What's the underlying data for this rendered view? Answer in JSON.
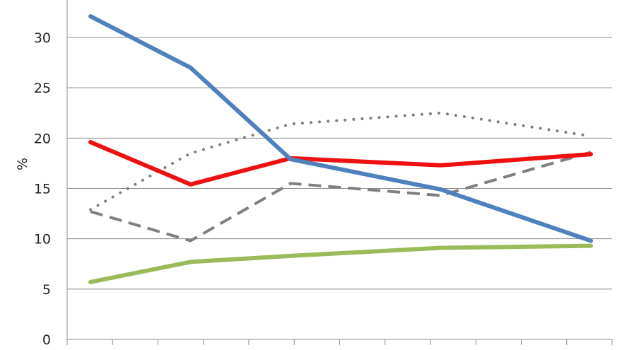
{
  "chart_data": {
    "type": "line",
    "ylabel": "%",
    "ylim": [
      0,
      35
    ],
    "yticks": [
      0,
      5,
      10,
      15,
      20,
      25,
      30
    ],
    "grid": "horizontal",
    "legend": "none",
    "x": [
      1,
      2,
      3,
      4,
      5,
      6
    ],
    "series": [
      {
        "values": [
          32.1,
          27.0,
          17.9,
          14.9,
          9.8
        ],
        "x": [
          1,
          2,
          3,
          4.5,
          6
        ],
        "color": "#4f81bd",
        "style": "solid"
      },
      {
        "values": [
          19.6,
          15.4,
          18.0,
          17.3,
          18.4
        ],
        "x": [
          1,
          2,
          3,
          4.5,
          6
        ],
        "color": "#ee1111",
        "style": "solid"
      },
      {
        "values": [
          12.7,
          9.8,
          15.5,
          14.3,
          18.6
        ],
        "x": [
          1,
          2,
          3,
          4.5,
          6
        ],
        "color": "#808080",
        "style": "dashed"
      },
      {
        "values": [
          12.9,
          18.5,
          21.4,
          22.5,
          20.2
        ],
        "x": [
          1,
          2,
          3,
          4.5,
          6
        ],
        "color": "#808080",
        "style": "dotted"
      },
      {
        "values": [
          5.7,
          7.7,
          8.3,
          9.1,
          9.3
        ],
        "x": [
          1,
          2,
          3,
          4.5,
          6
        ],
        "color": "#9bbb59",
        "style": "solid"
      }
    ]
  }
}
